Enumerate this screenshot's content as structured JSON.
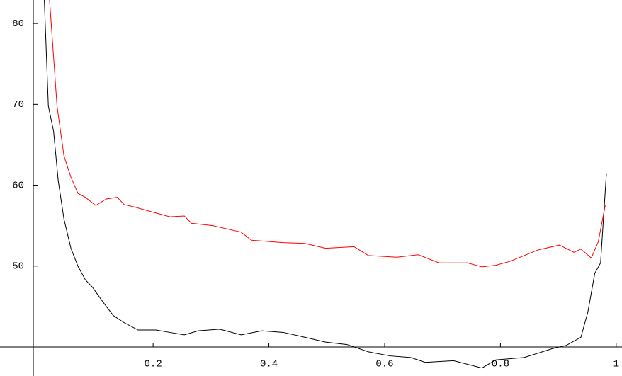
{
  "chart_data": {
    "type": "line",
    "xlim": [
      -0.007,
      1.01
    ],
    "ylim": [
      40,
      82.9
    ],
    "xticks": [
      0.2,
      0.4,
      0.6,
      0.8,
      1
    ],
    "yticks": [
      50,
      60,
      70,
      80
    ],
    "series": [
      {
        "name": "black",
        "color": "#000000",
        "x": [
          0.012,
          0.019,
          0.028,
          0.036,
          0.046,
          0.058,
          0.07,
          0.083,
          0.095,
          0.113,
          0.131,
          0.15,
          0.174,
          0.205,
          0.229,
          0.254,
          0.278,
          0.315,
          0.352,
          0.388,
          0.425,
          0.462,
          0.498,
          0.535,
          0.572,
          0.609,
          0.645,
          0.67,
          0.719,
          0.768,
          0.792,
          0.841,
          0.89,
          0.914,
          0.939,
          0.951,
          0.963,
          0.973,
          0.983
        ],
        "values": [
          83,
          69.8,
          66.7,
          60.6,
          55.8,
          52.2,
          50,
          48.3,
          47.4,
          45.6,
          43.9,
          43,
          42.1,
          42.1,
          41.8,
          41.5,
          42,
          42.2,
          41.5,
          42,
          41.8,
          41.2,
          40.6,
          40.3,
          39.4,
          38.9,
          38.7,
          38.1,
          38.3,
          37.4,
          38.4,
          38.7,
          39.8,
          40.2,
          41.2,
          44.3,
          49.1,
          50.4,
          61.4
        ]
      },
      {
        "name": "red",
        "color": "#ff0000",
        "x": [
          0.021,
          0.034,
          0.046,
          0.058,
          0.07,
          0.083,
          0.101,
          0.119,
          0.138,
          0.15,
          0.168,
          0.193,
          0.229,
          0.254,
          0.266,
          0.303,
          0.352,
          0.37,
          0.425,
          0.462,
          0.498,
          0.547,
          0.572,
          0.621,
          0.658,
          0.694,
          0.743,
          0.768,
          0.792,
          0.817,
          0.865,
          0.902,
          0.927,
          0.939,
          0.957,
          0.969,
          0.981
        ],
        "values": [
          83,
          69.8,
          63.6,
          61,
          59,
          58.5,
          57.5,
          58.3,
          58.5,
          57.6,
          57.3,
          56.8,
          56.1,
          56.2,
          55.3,
          55,
          54.2,
          53.2,
          52.9,
          52.8,
          52.2,
          52.4,
          51.3,
          51.1,
          51.4,
          50.4,
          50.4,
          49.9,
          50.1,
          50.6,
          52,
          52.6,
          51.7,
          52.1,
          51,
          53,
          57.5
        ]
      }
    ]
  }
}
